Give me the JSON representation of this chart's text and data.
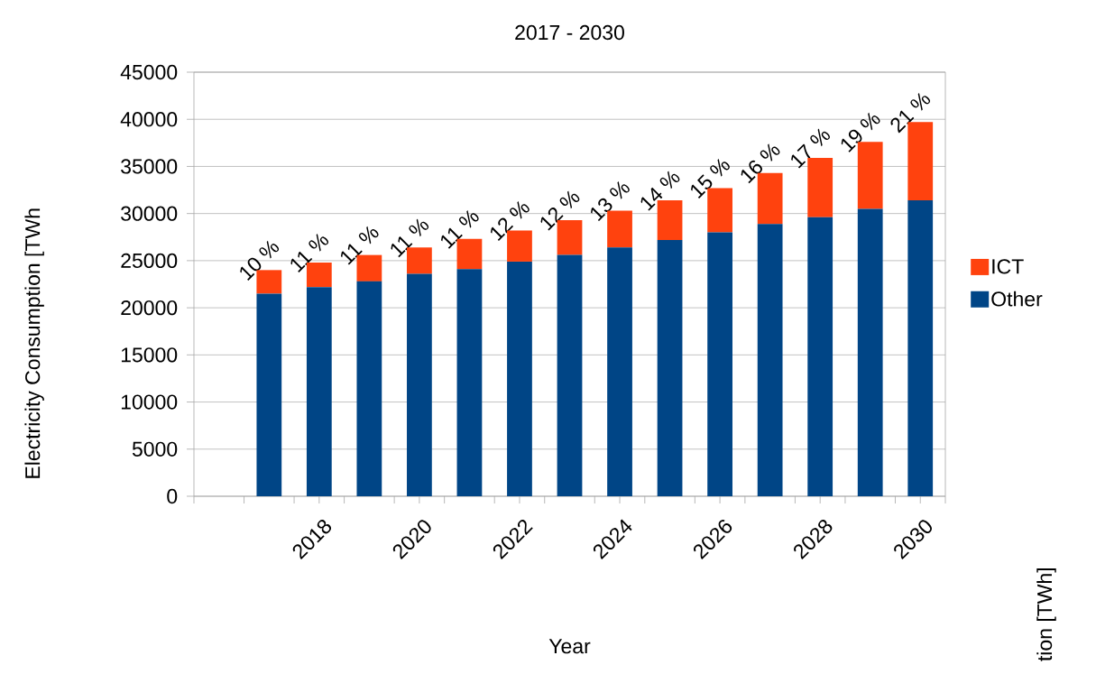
{
  "chart_data": {
    "type": "bar",
    "title": "2017 - 2030",
    "xlabel": "Year",
    "ylabel": "Electricity Consumption [TWh",
    "x": [
      2017,
      2018,
      2019,
      2020,
      2021,
      2022,
      2023,
      2024,
      2025,
      2026,
      2027,
      2028,
      2029,
      2030
    ],
    "stacked": true,
    "series": [
      {
        "name": "Other",
        "color": "#004586",
        "values": [
          21500,
          22200,
          22800,
          23600,
          24100,
          24900,
          25600,
          26400,
          27200,
          28000,
          28900,
          29600,
          30500,
          31400
        ]
      },
      {
        "name": "ICT",
        "color": "#ff420e",
        "values": [
          2500,
          2600,
          2800,
          2800,
          3200,
          3300,
          3700,
          3900,
          4200,
          4700,
          5400,
          6300,
          7100,
          8300
        ]
      }
    ],
    "xlim": [
      2015.5,
      2030.5
    ],
    "xticks": [
      {
        "value": 2015.5,
        "label": null
      },
      {
        "value": 2016.5,
        "label": null
      },
      {
        "value": 2017.5,
        "label": null
      },
      {
        "value": 2018,
        "label": "2018"
      },
      {
        "value": 2018.5,
        "label": null
      },
      {
        "value": 2019.5,
        "label": null
      },
      {
        "value": 2020,
        "label": "2020"
      },
      {
        "value": 2020.5,
        "label": null
      },
      {
        "value": 2021.5,
        "label": null
      },
      {
        "value": 2022,
        "label": "2022"
      },
      {
        "value": 2022.5,
        "label": null
      },
      {
        "value": 2023.5,
        "label": null
      },
      {
        "value": 2024,
        "label": "2024"
      },
      {
        "value": 2024.5,
        "label": null
      },
      {
        "value": 2025.5,
        "label": null
      },
      {
        "value": 2026,
        "label": "2026"
      },
      {
        "value": 2026.5,
        "label": null
      },
      {
        "value": 2027.5,
        "label": null
      },
      {
        "value": 2028,
        "label": "2028"
      },
      {
        "value": 2028.5,
        "label": null
      },
      {
        "value": 2029.5,
        "label": null
      },
      {
        "value": 2030,
        "label": "2030"
      },
      {
        "value": 2030.5,
        "label": null
      }
    ],
    "ylim": [
      0,
      45000
    ],
    "yticks": [
      0,
      5000,
      10000,
      15000,
      20000,
      25000,
      30000,
      35000,
      40000,
      45000
    ],
    "grid": "y",
    "legend": "right",
    "annotations": [
      {
        "text": "10 %",
        "x": 2017,
        "y": 24000
      },
      {
        "text": "11 %",
        "x": 2018,
        "y": 24800
      },
      {
        "text": "11 %",
        "x": 2019,
        "y": 25600
      },
      {
        "text": "11 %",
        "x": 2020,
        "y": 26400
      },
      {
        "text": "11 %",
        "x": 2021,
        "y": 27300
      },
      {
        "text": "12 %",
        "x": 2022,
        "y": 28200
      },
      {
        "text": "12 %",
        "x": 2023,
        "y": 29300
      },
      {
        "text": "13 %",
        "x": 2024,
        "y": 30300
      },
      {
        "text": "14 %",
        "x": 2025,
        "y": 31400
      },
      {
        "text": "15 %",
        "x": 2026,
        "y": 32700
      },
      {
        "text": "16 %",
        "x": 2027,
        "y": 34300
      },
      {
        "text": "17 %",
        "x": 2028,
        "y": 35900
      },
      {
        "text": "19 %",
        "x": 2029,
        "y": 37600
      },
      {
        "text": "21 %",
        "x": 2030,
        "y": 39700
      },
      "tion [TWh]"
    ]
  }
}
